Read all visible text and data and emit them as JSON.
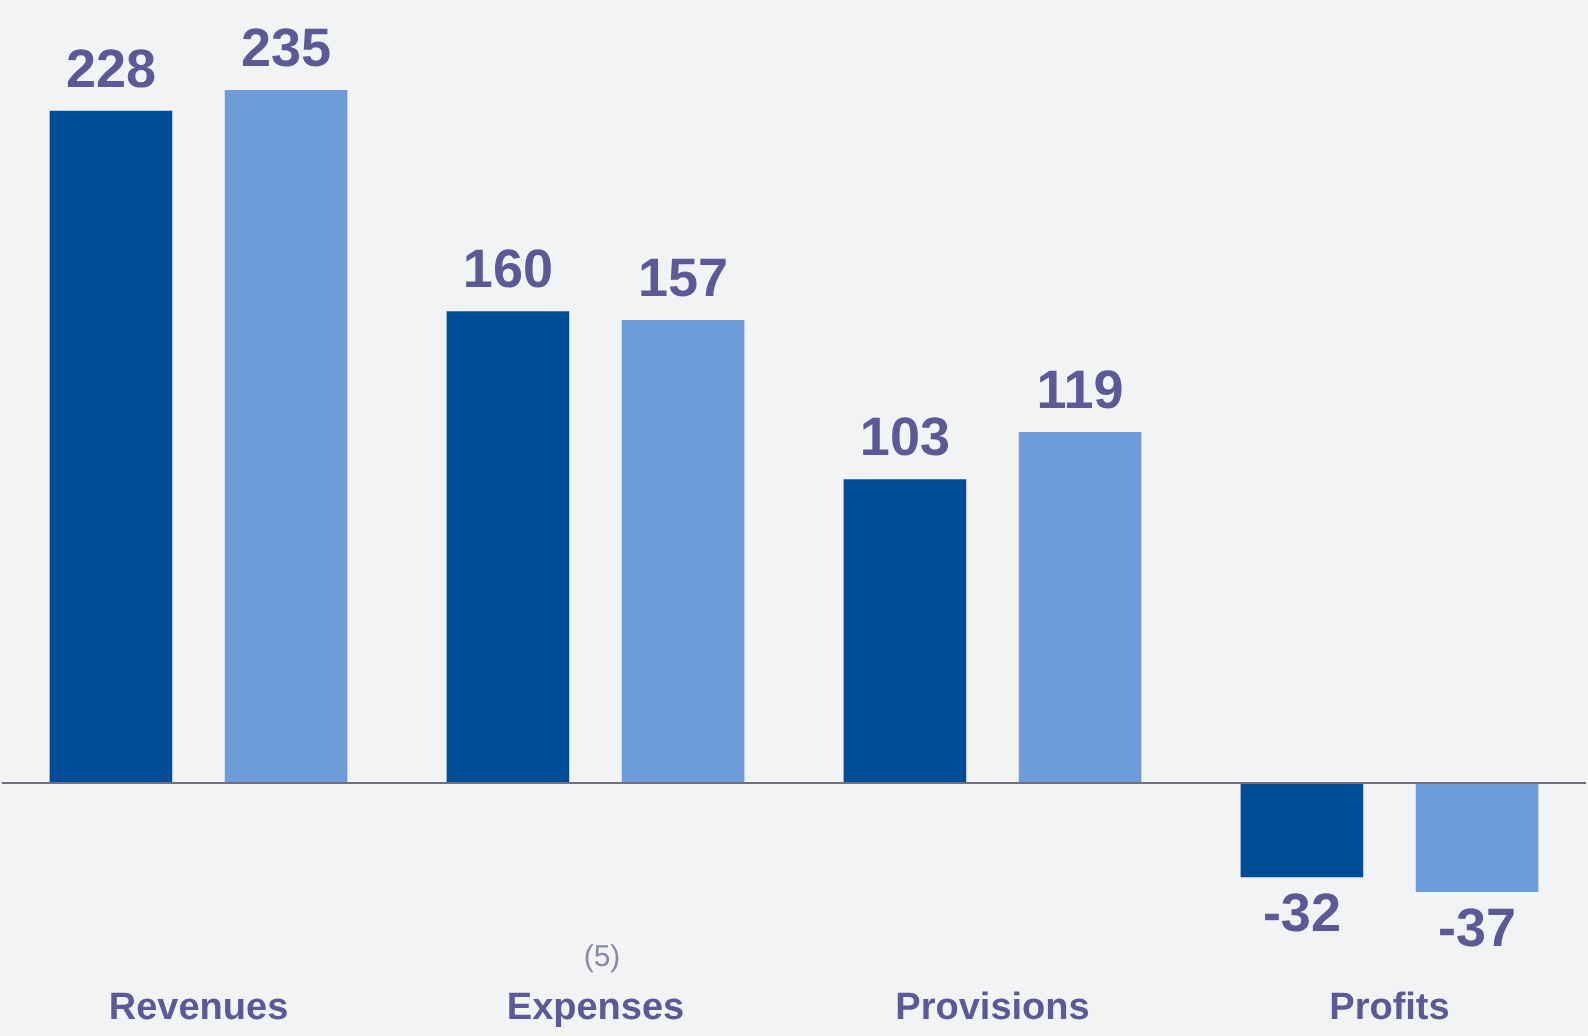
{
  "chart_data": {
    "type": "bar",
    "categories": [
      "Revenues",
      "Expenses",
      "Provisions",
      "Profits"
    ],
    "series": [
      {
        "color": "#004c99",
        "values": [
          228,
          160,
          103,
          -32
        ]
      },
      {
        "color": "#6e9cda",
        "values": [
          235,
          157,
          119,
          -37
        ]
      }
    ],
    "data_labels": true,
    "annotations": [
      "(5)"
    ]
  }
}
